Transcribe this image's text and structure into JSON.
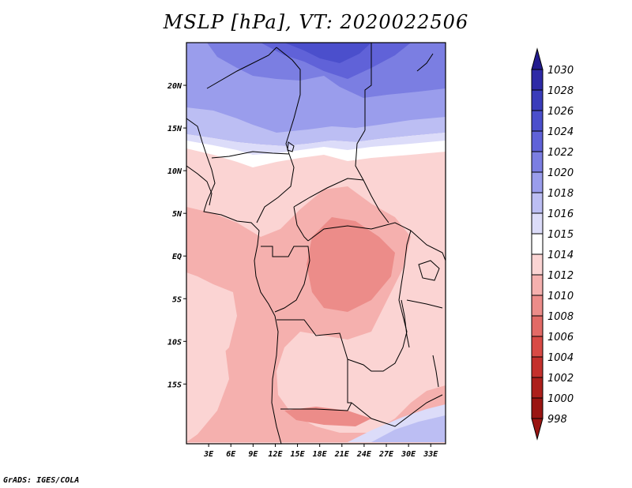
{
  "title": "MSLP [hPa], VT: 2020022506",
  "credit": "GrADS: IGES/COLA",
  "map": {
    "variable": "MSLP",
    "units": "hPa",
    "valid_time": "2020022506",
    "lon_range": [
      0,
      35
    ],
    "lat_range": [
      -22,
      25
    ],
    "lat_ticks": [
      {
        "value": 20,
        "label": "20N"
      },
      {
        "value": 15,
        "label": "15N"
      },
      {
        "value": 10,
        "label": "10N"
      },
      {
        "value": 5,
        "label": "5N"
      },
      {
        "value": 0,
        "label": "EQ"
      },
      {
        "value": -5,
        "label": "5S"
      },
      {
        "value": -10,
        "label": "10S"
      },
      {
        "value": -15,
        "label": "15S"
      }
    ],
    "lon_ticks": [
      {
        "value": 3,
        "label": "3E"
      },
      {
        "value": 6,
        "label": "6E"
      },
      {
        "value": 9,
        "label": "9E"
      },
      {
        "value": 12,
        "label": "12E"
      },
      {
        "value": 15,
        "label": "15E"
      },
      {
        "value": 18,
        "label": "18E"
      },
      {
        "value": 21,
        "label": "21E"
      },
      {
        "value": 24,
        "label": "24E"
      },
      {
        "value": 27,
        "label": "27E"
      },
      {
        "value": 30,
        "label": "30E"
      },
      {
        "value": 33,
        "label": "33E"
      }
    ]
  },
  "colorbar": {
    "levels": [
      {
        "label": "1030",
        "color": "#231c8f"
      },
      {
        "label": "1028",
        "color": "#2e2aa6"
      },
      {
        "label": "1026",
        "color": "#3a3cba"
      },
      {
        "label": "1024",
        "color": "#4b4fcc"
      },
      {
        "label": "1022",
        "color": "#6062d8"
      },
      {
        "label": "1020",
        "color": "#7b7ee2"
      },
      {
        "label": "1018",
        "color": "#9a9dec"
      },
      {
        "label": "1016",
        "color": "#bcbef3"
      },
      {
        "label": "1015",
        "color": "#dcdcf9"
      },
      {
        "label": "1014",
        "color": "#ffffff"
      },
      {
        "label": "1012",
        "color": "#fbd4d3"
      },
      {
        "label": "1010",
        "color": "#f5b0ae"
      },
      {
        "label": "1008",
        "color": "#ec8c89"
      },
      {
        "label": "1006",
        "color": "#e26a66"
      },
      {
        "label": "1004",
        "color": "#d84a45"
      },
      {
        "label": "1002",
        "color": "#c4302c"
      },
      {
        "label": "1000",
        "color": "#ad1f1b"
      },
      {
        "label": "998",
        "color": "#9a1512"
      }
    ]
  },
  "colors": {
    "frame": "#000000",
    "border": "#000000"
  }
}
